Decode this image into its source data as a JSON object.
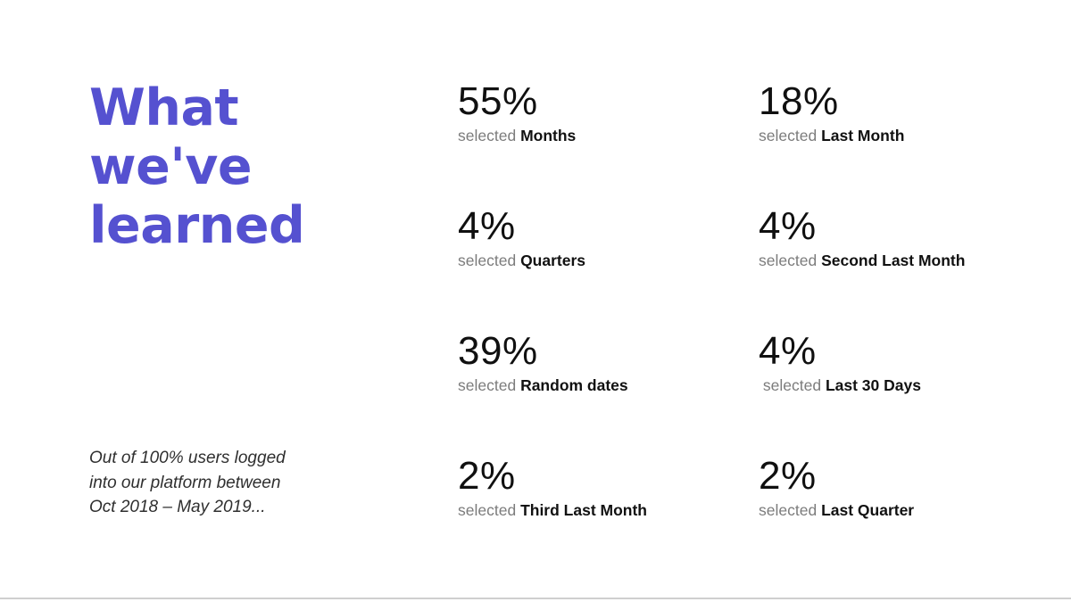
{
  "slide": {
    "title": "What\nwe've\nlearned",
    "note": "Out of 100% users logged\ninto our platform between\nOct 2018 – May 2019...",
    "colors": {
      "accent_purple": "#5551d0",
      "number_black": "#101010",
      "caption_gray": "#7c7c7c",
      "note_gray": "#2f2f2f",
      "divider_gray": "#cfcfcf"
    }
  },
  "stats": [
    {
      "value": "55%",
      "prefix": "selected",
      "label": "Months"
    },
    {
      "value": "18%",
      "prefix": "selected",
      "label": "Last Month"
    },
    {
      "value": "4%",
      "prefix": "selected",
      "label": "Quarters"
    },
    {
      "value": "4%",
      "prefix": "selected",
      "label": "Second Last Month"
    },
    {
      "value": "39%",
      "prefix": "selected",
      "label": "Random dates"
    },
    {
      "value": "4%",
      "prefix": " selected",
      "label": "Last 30 Days"
    },
    {
      "value": "2%",
      "prefix": "selected",
      "label": "Third Last Month"
    },
    {
      "value": "2%",
      "prefix": "selected",
      "label": "Last Quarter"
    }
  ]
}
